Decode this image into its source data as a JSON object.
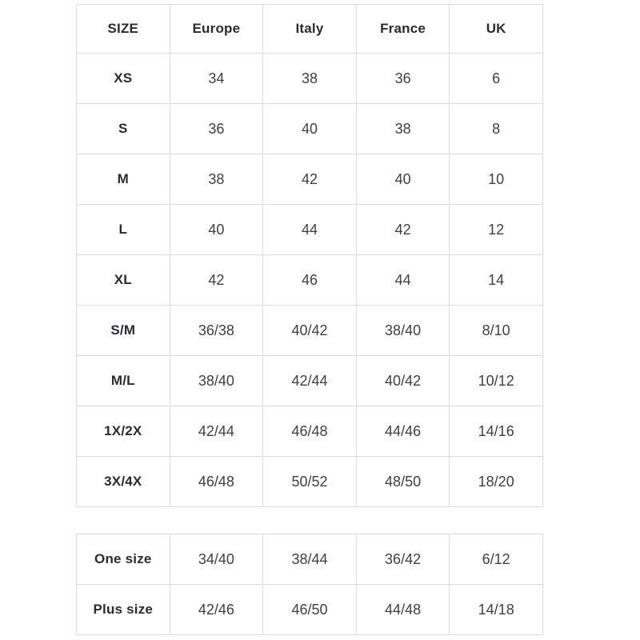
{
  "page": {
    "background_color": "#ffffff",
    "border_color": "#dcdcdf",
    "header_text_color": "#2b2b33",
    "cell_text_color": "#3f3f47"
  },
  "size_chart": {
    "columns": [
      "SIZE",
      "Europe",
      "Italy",
      "France",
      "UK"
    ],
    "rows": [
      {
        "label": "XS",
        "values": [
          "34",
          "38",
          "36",
          "6"
        ]
      },
      {
        "label": "S",
        "values": [
          "36",
          "40",
          "38",
          "8"
        ]
      },
      {
        "label": "M",
        "values": [
          "38",
          "42",
          "40",
          "10"
        ]
      },
      {
        "label": "L",
        "values": [
          "40",
          "44",
          "42",
          "12"
        ]
      },
      {
        "label": "XL",
        "values": [
          "42",
          "46",
          "44",
          "14"
        ]
      },
      {
        "label": "S/M",
        "values": [
          "36/38",
          "40/42",
          "38/40",
          "8/10"
        ]
      },
      {
        "label": "M/L",
        "values": [
          "38/40",
          "42/44",
          "40/42",
          "10/12"
        ]
      },
      {
        "label": "1X/2X",
        "values": [
          "42/44",
          "46/48",
          "44/46",
          "14/16"
        ]
      },
      {
        "label": "3X/4X",
        "values": [
          "46/48",
          "50/52",
          "48/50",
          "18/20"
        ]
      }
    ]
  },
  "special_sizes": {
    "rows": [
      {
        "label": "One size",
        "values": [
          "34/40",
          "38/44",
          "36/42",
          "6/12"
        ]
      },
      {
        "label": "Plus size",
        "values": [
          "42/46",
          "46/50",
          "44/48",
          "14/18"
        ]
      }
    ]
  }
}
